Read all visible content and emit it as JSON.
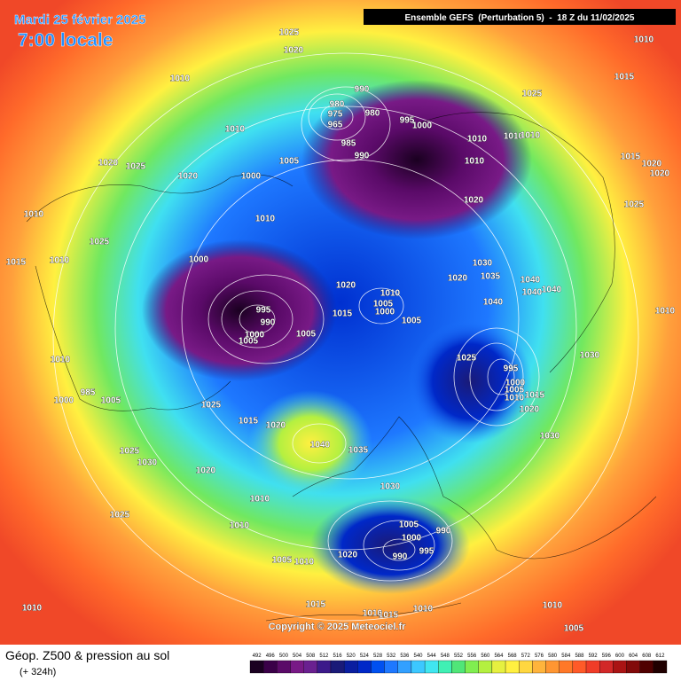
{
  "header": {
    "date": "Mardi 25 février 2025",
    "time": "7:00 locale",
    "model": "Ensemble GEFS  (Perturbation 5)  -  18 Z du 11/02/2025"
  },
  "footer": {
    "title": "Géop. Z500 & pression au sol",
    "lead": "(+ 324h)",
    "copyright": "Copyright © 2025 Meteociel.fr"
  },
  "colorbar": {
    "ticks": [
      492,
      496,
      500,
      504,
      508,
      512,
      516,
      520,
      524,
      528,
      532,
      536,
      540,
      544,
      548,
      552,
      556,
      560,
      564,
      568,
      572,
      576,
      580,
      584,
      588,
      592,
      596,
      600,
      604,
      608,
      612
    ],
    "colors": [
      "#1a0020",
      "#3a0048",
      "#5a0a68",
      "#781a86",
      "#6a2090",
      "#3c1a8a",
      "#1a1a78",
      "#0a1ea0",
      "#0028c8",
      "#0050f0",
      "#1e78ff",
      "#32a0ff",
      "#3cc8ff",
      "#40e6f0",
      "#40f0b4",
      "#50e678",
      "#80ee50",
      "#b4f040",
      "#e6f040",
      "#fff040",
      "#ffd740",
      "#ffb43c",
      "#ff9632",
      "#ff7828",
      "#ff5a28",
      "#f03c28",
      "#d22828",
      "#aa1414",
      "#820a0a",
      "#500000",
      "#200000"
    ]
  },
  "isobar_labels": [
    1025,
    1020,
    1010,
    1010,
    1015,
    990,
    1025,
    980,
    980,
    975,
    965,
    995,
    1000,
    1010,
    985,
    1010,
    1010,
    1010,
    990,
    1005,
    1010,
    1020,
    1025,
    1020,
    1000,
    1015,
    1020,
    1020,
    1020,
    1025,
    1010,
    1010,
    1025,
    1000,
    1010,
    1015,
    1030,
    1035,
    1020,
    1020,
    1040,
    1040,
    1040,
    1010,
    1005,
    1000,
    1040,
    1010,
    995,
    990,
    1015,
    1005,
    1000,
    1005,
    1005,
    1025,
    995,
    1030,
    1010,
    1000,
    1005,
    1015,
    1010,
    985,
    1000,
    1005,
    1025,
    1020,
    1015,
    1020,
    1040,
    1030,
    1035,
    1025,
    1030,
    1020,
    1030,
    1010,
    1025,
    1010,
    1005,
    990,
    1000,
    995,
    1020,
    990,
    1005,
    1010,
    1010,
    1015,
    1010,
    1015,
    1010,
    1010,
    1005
  ]
}
